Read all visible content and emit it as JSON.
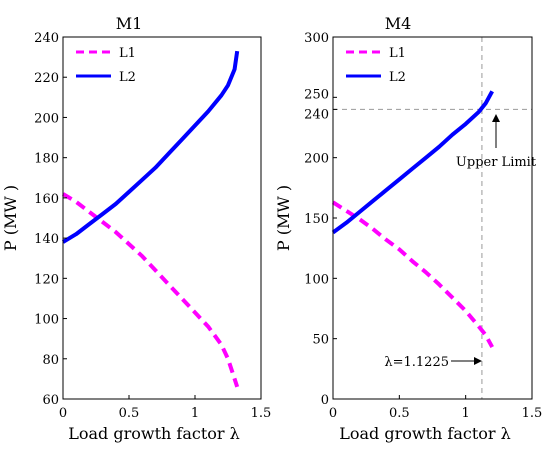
{
  "chart_data": [
    {
      "type": "line",
      "title": "M1",
      "xlabel": "Load growth factor λ",
      "ylabel": "P (MW )",
      "xlim": [
        0,
        1.5
      ],
      "ylim": [
        60,
        240
      ],
      "xticks": [
        "0",
        "0.5",
        "1",
        "1.5"
      ],
      "yticks": [
        "60",
        "80",
        "100",
        "120",
        "140",
        "160",
        "180",
        "200",
        "220",
        "240"
      ],
      "legend": "top-left",
      "grid": false,
      "series": [
        {
          "name": "L1",
          "color": "#ff00ff",
          "style": "dashed",
          "x": [
            0,
            0.1,
            0.2,
            0.3,
            0.4,
            0.5,
            0.6,
            0.7,
            0.8,
            0.9,
            1.0,
            1.1,
            1.2,
            1.25,
            1.3,
            1.32
          ],
          "y": [
            162,
            158,
            153,
            148,
            143,
            137,
            131,
            124,
            117,
            110,
            103,
            96,
            87,
            80,
            70,
            66
          ]
        },
        {
          "name": "L2",
          "color": "#0000ff",
          "style": "solid",
          "x": [
            0,
            0.1,
            0.2,
            0.3,
            0.4,
            0.5,
            0.6,
            0.7,
            0.8,
            0.9,
            1.0,
            1.1,
            1.2,
            1.25,
            1.3,
            1.32
          ],
          "y": [
            138,
            142,
            147,
            152,
            157,
            163,
            169,
            175,
            182,
            189,
            196,
            203,
            211,
            216,
            224,
            233
          ]
        }
      ]
    },
    {
      "type": "line",
      "title": "M4",
      "xlabel": "Load growth factor λ",
      "ylabel": "P (MW )",
      "xlim": [
        0,
        1.5
      ],
      "ylim": [
        0,
        300
      ],
      "xticks": [
        "0",
        "0.5",
        "1",
        "1.5"
      ],
      "yticks": [
        "0",
        "50",
        "100",
        "150",
        "200",
        "240",
        "250",
        "300"
      ],
      "legend": "top-left",
      "grid": false,
      "series": [
        {
          "name": "L1",
          "color": "#ff00ff",
          "style": "dashed",
          "x": [
            0,
            0.1,
            0.2,
            0.3,
            0.4,
            0.5,
            0.6,
            0.7,
            0.8,
            0.9,
            1.0,
            1.1,
            1.15,
            1.2
          ],
          "y": [
            163,
            156,
            149,
            141,
            132,
            124,
            114,
            105,
            95,
            84,
            73,
            60,
            53,
            43
          ]
        },
        {
          "name": "L2",
          "color": "#0000ff",
          "style": "solid",
          "x": [
            0,
            0.1,
            0.2,
            0.3,
            0.4,
            0.5,
            0.6,
            0.7,
            0.8,
            0.9,
            1.0,
            1.1,
            1.15,
            1.2
          ],
          "y": [
            138,
            146,
            155,
            164,
            173,
            182,
            191,
            200,
            209,
            219,
            228,
            238,
            245,
            255
          ]
        }
      ],
      "reference_lines": {
        "horizontal_y": 240,
        "vertical_x": 1.1225
      },
      "annotations": [
        {
          "text": "Upper Limit",
          "x": 1.2,
          "y": 240
        },
        {
          "text": "λ=1.1225",
          "x": 1.1225,
          "y": 35
        }
      ]
    }
  ]
}
